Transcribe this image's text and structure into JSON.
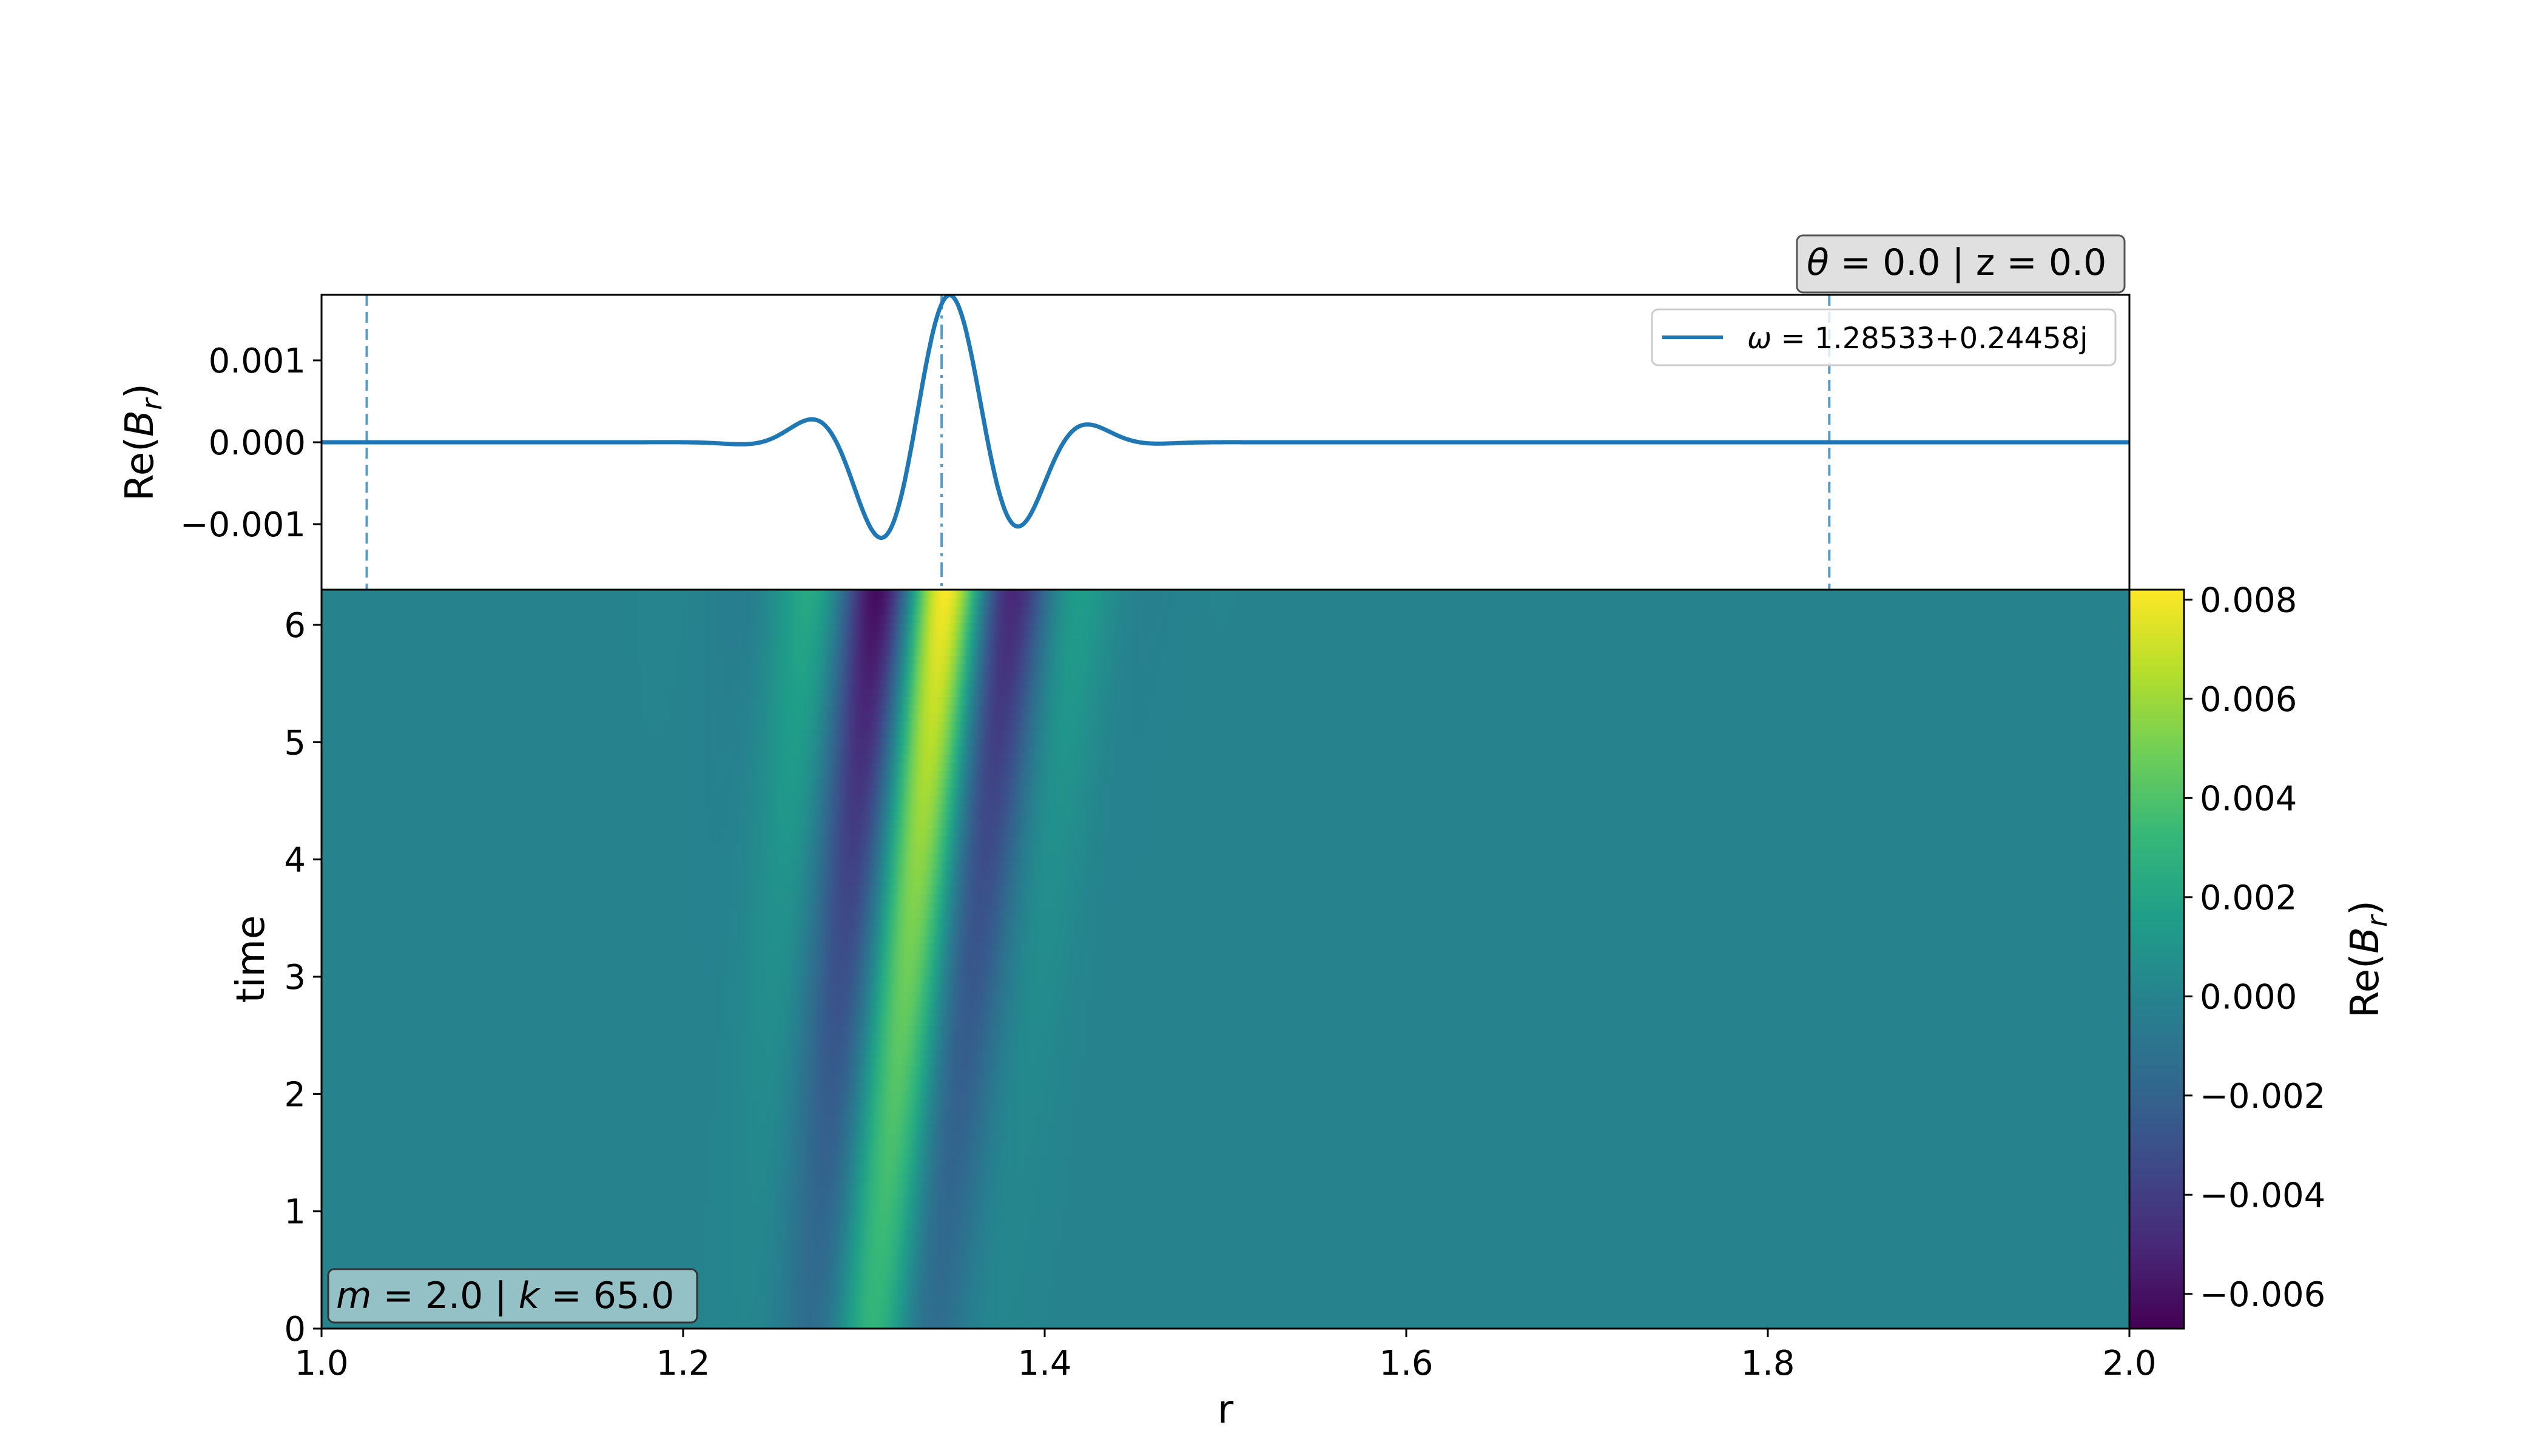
{
  "chart_data": [
    {
      "type": "line",
      "title": "",
      "corner_annotation": {
        "theta_label": "θ",
        "text": " = 0.0 | z = 0.0"
      },
      "xlabel": "",
      "ylabel": {
        "prefix": "Re(",
        "symbol": "B",
        "subscript": "r",
        "suffix": ")"
      },
      "xlim": [
        1.0,
        2.0
      ],
      "ylim": [
        -0.0018,
        0.0018
      ],
      "yticks": [
        0.001,
        0.0,
        -0.001
      ],
      "ytick_labels": [
        "0.001",
        "0.000",
        "−0.001"
      ],
      "grid": false,
      "legend": {
        "placement": "top-right",
        "series_label": {
          "symbol": "ω",
          "text": " = 1.28533+0.24458j"
        }
      },
      "series": [
        {
          "name": "ω = 1.28533+0.24458j",
          "color": "#1f77b4",
          "wave": {
            "center": 1.345,
            "sigma": 0.04,
            "amplitude": 0.0018,
            "k": 75.0,
            "phase": -0.2
          }
        }
      ],
      "vertical_lines": [
        {
          "x": 1.025,
          "style": "dashed"
        },
        {
          "x": 1.343,
          "style": "dashdot"
        },
        {
          "x": 1.834,
          "style": "dashed"
        }
      ]
    },
    {
      "type": "heatmap",
      "title": "",
      "corner_annotation": {
        "m_label": "m",
        "m_text": " = 2.0 | ",
        "k_label": "k",
        "k_text": " = 65.0"
      },
      "xlabel": "r",
      "ylabel": "time",
      "xlim": [
        1.0,
        2.0
      ],
      "ylim": [
        0,
        6.3
      ],
      "xticks": [
        1.0,
        1.2,
        1.4,
        1.6,
        1.8,
        2.0
      ],
      "xtick_labels": [
        "1.0",
        "1.2",
        "1.4",
        "1.6",
        "1.8",
        "2.0"
      ],
      "yticks": [
        0,
        1,
        2,
        3,
        4,
        5,
        6
      ],
      "ytick_labels": [
        "0",
        "1",
        "2",
        "3",
        "4",
        "5",
        "6"
      ],
      "colormap": "viridis",
      "field": {
        "center_t0": 1.305,
        "drift_per_time": 0.0055,
        "sigma_t0": 0.03,
        "sigma_growth": 0.0025,
        "k": 77.0,
        "phase_t0": 0.0,
        "phase_per_time": -0.07,
        "amp_t0": 0.003,
        "amp_t_end": 0.0082
      },
      "colorbar": {
        "label": {
          "prefix": "Re(",
          "symbol": "B",
          "subscript": "r",
          "suffix": ")"
        },
        "vmin": -0.0067,
        "vmax": 0.0082,
        "ticks": [
          0.008,
          0.006,
          0.004,
          0.002,
          0.0,
          -0.002,
          -0.004,
          -0.006
        ],
        "tick_labels": [
          "0.008",
          "0.006",
          "0.004",
          "0.002",
          "0.000",
          "−0.002",
          "−0.004",
          "−0.006"
        ]
      }
    }
  ]
}
